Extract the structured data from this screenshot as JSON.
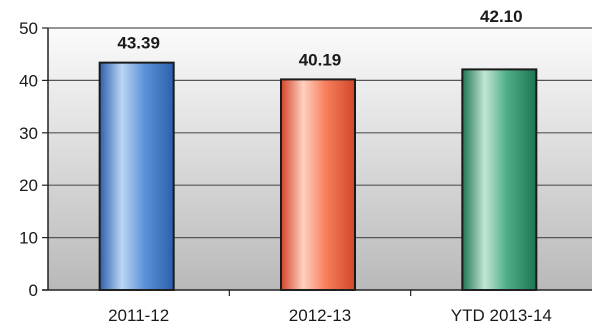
{
  "chart_data": {
    "type": "bar",
    "title": "",
    "xlabel": "",
    "ylabel": "",
    "categories": [
      "2011-12",
      "2012-13",
      "YTD 2013-14"
    ],
    "values": [
      43.39,
      40.19,
      42.1
    ],
    "data_labels": [
      "43.39",
      "40.19",
      "42.10"
    ],
    "yticks": [
      "0",
      "10",
      "20",
      "30",
      "40",
      "50"
    ],
    "ylim": [
      0,
      50
    ],
    "grid": true,
    "legend": "none",
    "colors": {
      "bars": [
        {
          "light": "#bcd6f4",
          "mid": "#5c93d8",
          "dark": "#2b5fae"
        },
        {
          "light": "#ffd0c0",
          "mid": "#f7805c",
          "dark": "#d2462a"
        },
        {
          "light": "#c2e6d4",
          "mid": "#4fae88",
          "dark": "#1d7552"
        }
      ],
      "plot_top": "#fbfbfb",
      "plot_bottom": "#b9b9b9",
      "gridline": "#555555",
      "axis": "#222222"
    }
  }
}
